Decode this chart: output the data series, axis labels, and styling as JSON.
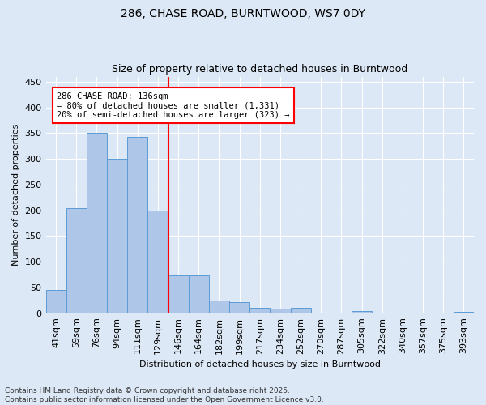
{
  "title1": "286, CHASE ROAD, BURNTWOOD, WS7 0DY",
  "title2": "Size of property relative to detached houses in Burntwood",
  "xlabel": "Distribution of detached houses by size in Burntwood",
  "ylabel": "Number of detached properties",
  "bar_labels": [
    "41sqm",
    "59sqm",
    "76sqm",
    "94sqm",
    "111sqm",
    "129sqm",
    "146sqm",
    "164sqm",
    "182sqm",
    "199sqm",
    "217sqm",
    "234sqm",
    "252sqm",
    "270sqm",
    "287sqm",
    "305sqm",
    "322sqm",
    "340sqm",
    "357sqm",
    "375sqm",
    "393sqm"
  ],
  "bar_values": [
    45,
    204,
    350,
    300,
    343,
    200,
    73,
    73,
    24,
    21,
    11,
    9,
    11,
    0,
    0,
    4,
    0,
    0,
    0,
    0,
    2
  ],
  "bar_color": "#aec6e8",
  "bar_edge_color": "#5b9bd5",
  "vline_x": 5.5,
  "vline_color": "red",
  "annotation_text": "286 CHASE ROAD: 136sqm\n← 80% of detached houses are smaller (1,331)\n20% of semi-detached houses are larger (323) →",
  "annotation_box_color": "red",
  "ylim": [
    0,
    460
  ],
  "yticks": [
    0,
    50,
    100,
    150,
    200,
    250,
    300,
    350,
    400,
    450
  ],
  "footnote": "Contains HM Land Registry data © Crown copyright and database right 2025.\nContains public sector information licensed under the Open Government Licence v3.0.",
  "bg_color": "#dce8f5",
  "plot_bg_color": "#dce8f5",
  "grid_color": "#ffffff",
  "title_fontsize": 10,
  "subtitle_fontsize": 9,
  "ylabel_fontsize": 8,
  "xlabel_fontsize": 8,
  "tick_fontsize": 8,
  "ann_fontsize": 7.5,
  "footnote_fontsize": 6.5
}
